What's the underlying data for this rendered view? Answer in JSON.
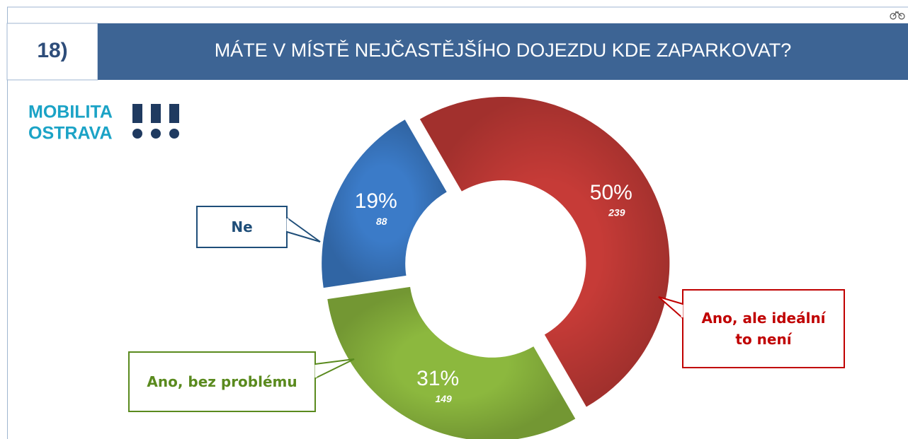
{
  "header": {
    "number": "18)",
    "title": "MÁTE V MÍSTĚ NEJČASTĚJŠÍHO DOJEZDU KDE ZAPARKOVAT?"
  },
  "logo": {
    "line1": "MOBILITA",
    "line2": "OSTRAVA"
  },
  "chart_data": {
    "type": "donut",
    "categories": [
      "Ano, ale ideální to není",
      "Ano, bez problému",
      "Ne"
    ],
    "values": [
      50,
      31,
      19
    ],
    "value_labels": [
      "50%",
      "31%",
      "19%"
    ],
    "counts": [
      239,
      149,
      88
    ],
    "colors": [
      "#c63b37",
      "#8cb83e",
      "#3b7bc8"
    ],
    "label_colors": [
      "#c00000",
      "#5a8a1e",
      "#1f4e79"
    ]
  }
}
